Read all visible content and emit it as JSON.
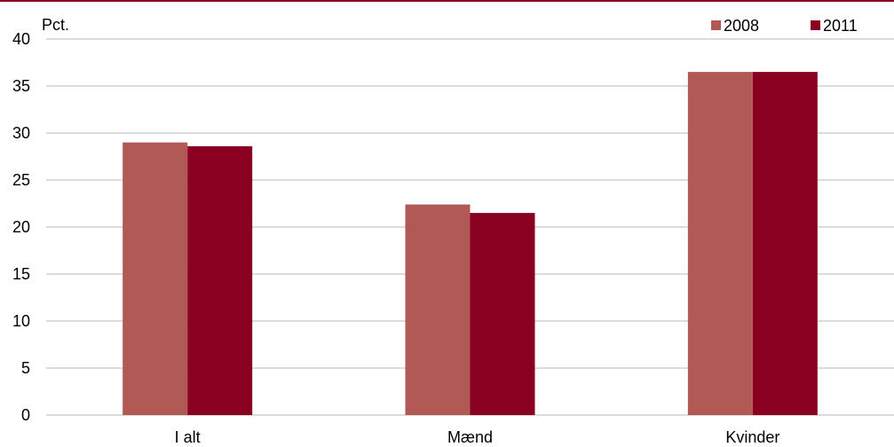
{
  "chart_data": {
    "type": "bar",
    "unit_label": "Pct.",
    "categories": [
      "I alt",
      "Mænd",
      "Kvinder"
    ],
    "series": [
      {
        "name": "2008",
        "values": [
          29.0,
          22.4,
          36.5
        ],
        "color": "#b15a55"
      },
      {
        "name": "2011",
        "values": [
          28.6,
          21.5,
          36.5
        ],
        "color": "#8a0020"
      }
    ],
    "ylim": [
      0,
      40
    ],
    "yticks": [
      0,
      5,
      10,
      15,
      20,
      25,
      30,
      35,
      40
    ],
    "grid": true,
    "legend_position": "top-right",
    "colors": {
      "top_rule": "#8a0020",
      "grid": "#d0d0d0"
    }
  }
}
